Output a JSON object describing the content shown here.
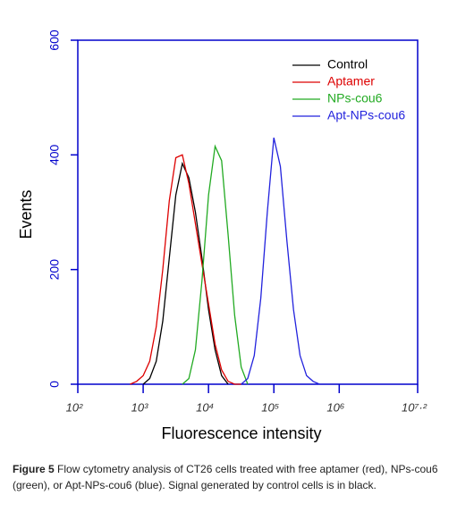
{
  "chart_data": {
    "type": "line",
    "x_label": "Fluorescence intensity",
    "y_label": "Events",
    "xscale": "log",
    "xlim": [
      2,
      7.2
    ],
    "xticks": [
      {
        "value": 2,
        "label": "10²"
      },
      {
        "value": 3,
        "label": "10³"
      },
      {
        "value": 4,
        "label": "10⁴"
      },
      {
        "value": 5,
        "label": "10⁵"
      },
      {
        "value": 6,
        "label": "10⁶"
      },
      {
        "value": 7.2,
        "label": "10⁷·²"
      }
    ],
    "ylim": [
      0,
      600
    ],
    "yticks": [
      0,
      200,
      400,
      600
    ],
    "legend": "upper right",
    "series": [
      {
        "name": "Control",
        "color": "#000000",
        "x": [
          3.0,
          3.1,
          3.2,
          3.3,
          3.4,
          3.5,
          3.6,
          3.7,
          3.8,
          3.9,
          4.0,
          4.1,
          4.2,
          4.3
        ],
        "values": [
          0,
          10,
          40,
          110,
          220,
          330,
          385,
          360,
          300,
          220,
          130,
          60,
          15,
          0
        ]
      },
      {
        "name": "Aptamer",
        "color": "#dd0000",
        "x": [
          2.8,
          2.9,
          3.0,
          3.1,
          3.2,
          3.3,
          3.4,
          3.5,
          3.6,
          3.7,
          3.8,
          3.9,
          4.0,
          4.1,
          4.2,
          4.3,
          4.4,
          4.5
        ],
        "values": [
          0,
          5,
          15,
          40,
          100,
          200,
          320,
          395,
          400,
          350,
          280,
          210,
          140,
          70,
          25,
          5,
          0,
          0
        ]
      },
      {
        "name": "NPs-cou6",
        "color": "#22aa22",
        "x": [
          3.6,
          3.7,
          3.8,
          3.9,
          4.0,
          4.1,
          4.2,
          4.3,
          4.4,
          4.5,
          4.6
        ],
        "values": [
          0,
          10,
          60,
          180,
          330,
          415,
          390,
          260,
          120,
          30,
          0
        ]
      },
      {
        "name": "Apt-NPs-cou6",
        "color": "#2222dd",
        "x": [
          4.5,
          4.6,
          4.7,
          4.8,
          4.9,
          5.0,
          5.1,
          5.2,
          5.3,
          5.4,
          5.5,
          5.6,
          5.7
        ],
        "values": [
          0,
          10,
          50,
          150,
          300,
          430,
          380,
          250,
          130,
          50,
          15,
          5,
          0
        ]
      }
    ]
  },
  "caption": {
    "label": "Figure 5",
    "text": " Flow cytometry analysis of CT26 cells treated with free aptamer (red), NPs-cou6 (green), or Apt-NPs-cou6 (blue). Signal generated by control cells is in black."
  }
}
